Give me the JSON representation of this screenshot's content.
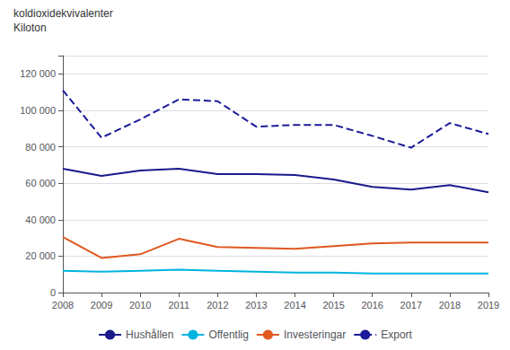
{
  "chart_data": {
    "type": "line",
    "title": "koldioxidekvivalenter",
    "subtitle": "Kiloton",
    "x": [
      2008,
      2009,
      2010,
      2011,
      2012,
      2013,
      2014,
      2015,
      2016,
      2017,
      2018,
      2019
    ],
    "xlim": [
      2008,
      2019
    ],
    "xticks": [
      2008,
      2009,
      2010,
      2011,
      2012,
      2013,
      2014,
      2015,
      2016,
      2017,
      2018,
      2019
    ],
    "ylim": [
      0,
      130000
    ],
    "yticks": [
      0,
      {
        "value": 20000,
        "label": "20 000"
      },
      {
        "value": 40000,
        "label": "40 000"
      },
      {
        "value": 60000,
        "label": "60 000"
      },
      {
        "value": 80000,
        "label": "80 000"
      },
      {
        "value": 100000,
        "label": "100 000"
      },
      {
        "value": 120000,
        "label": "120 000"
      }
    ],
    "grid": true,
    "legend": "bottom",
    "series": [
      {
        "name": "Hushållen",
        "color": "#1a1a8c",
        "line_style": "solid",
        "values": [
          68000,
          64000,
          67000,
          68000,
          65000,
          65000,
          64500,
          62000,
          58000,
          56500,
          59000,
          55000
        ]
      },
      {
        "name": "Offentlig",
        "color": "#00b4e0",
        "line_style": "solid",
        "values": [
          12000,
          11500,
          12000,
          12500,
          12000,
          11500,
          11000,
          11000,
          10500,
          10500,
          10500,
          10500
        ]
      },
      {
        "name": "Investeringar",
        "color": "#e05820",
        "line_style": "solid",
        "values": [
          30500,
          19000,
          21000,
          29500,
          25000,
          24500,
          24000,
          25500,
          27000,
          27500,
          27500,
          27500
        ]
      },
      {
        "name": "Export",
        "color": "#1a1a9a",
        "line_style": "dashed",
        "values": [
          111000,
          85000,
          95000,
          106000,
          105000,
          91000,
          92000,
          92000,
          86000,
          79500,
          93000,
          87000
        ]
      }
    ]
  }
}
